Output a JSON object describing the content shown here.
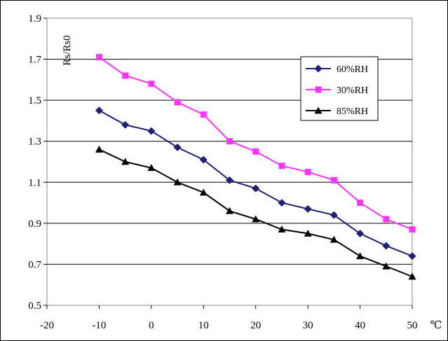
{
  "chart_data": {
    "type": "line",
    "xlabel": "",
    "x_unit": "℃",
    "ylabel": "Rs/Rs0",
    "xlim": [
      -20,
      50
    ],
    "ylim": [
      0.5,
      1.9
    ],
    "x_ticks": [
      "-20",
      "-10",
      "0",
      "10",
      "20",
      "30",
      "40",
      "50"
    ],
    "y_ticks": [
      "0.5",
      "0.7",
      "0.9",
      "1.1",
      "1.3",
      "1.5",
      "1.7",
      "1.9"
    ],
    "grid": "horizontal",
    "legend_position": "top-right",
    "x": [
      -10,
      -5,
      0,
      5,
      10,
      15,
      20,
      25,
      30,
      35,
      40,
      45,
      50
    ],
    "series": [
      {
        "name": "60%RH",
        "marker": "diamond",
        "color": "#1f1f7a",
        "values": [
          1.45,
          1.38,
          1.35,
          1.27,
          1.21,
          1.11,
          1.07,
          1.0,
          0.97,
          0.94,
          0.85,
          0.79,
          0.74
        ]
      },
      {
        "name": "30%RH",
        "marker": "square",
        "color": "#ff33ff",
        "values": [
          1.71,
          1.62,
          1.58,
          1.49,
          1.43,
          1.3,
          1.25,
          1.18,
          1.15,
          1.11,
          1.0,
          0.92,
          0.87
        ]
      },
      {
        "name": "85%RH",
        "marker": "triangle",
        "color": "#000000",
        "values": [
          1.26,
          1.2,
          1.17,
          1.1,
          1.05,
          0.96,
          0.92,
          0.87,
          0.85,
          0.82,
          0.74,
          0.69,
          0.64
        ]
      }
    ]
  }
}
